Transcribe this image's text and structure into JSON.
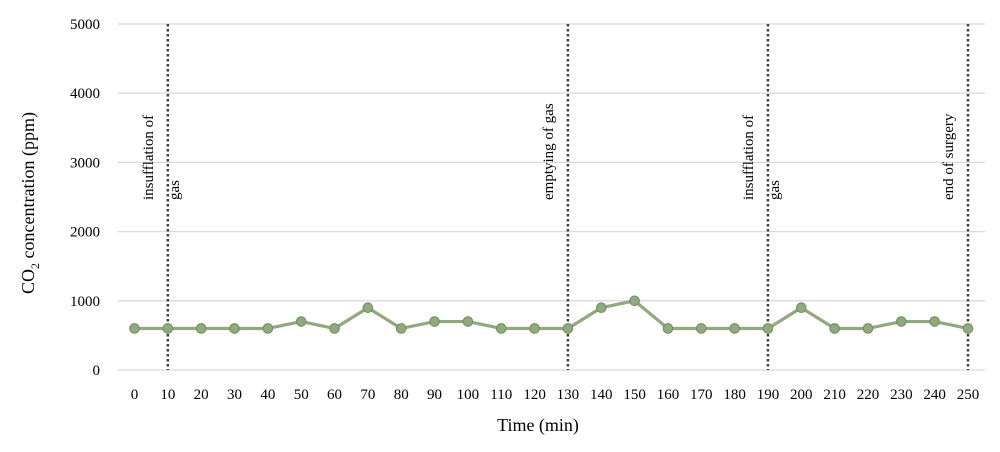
{
  "chart_data": {
    "type": "line",
    "title": "",
    "xlabel": "Time (min)",
    "ylabel_parts": [
      "CO",
      "2",
      " concentration (ppm)"
    ],
    "ylim": [
      0,
      5000
    ],
    "yticks": [
      0,
      1000,
      2000,
      3000,
      4000,
      5000
    ],
    "grid": "horizontal",
    "legend": "none",
    "x": [
      0,
      10,
      20,
      30,
      40,
      50,
      60,
      70,
      80,
      90,
      100,
      110,
      120,
      130,
      140,
      150,
      160,
      170,
      180,
      190,
      200,
      210,
      220,
      230,
      240,
      250
    ],
    "series": [
      {
        "values": [
          600,
          600,
          600,
          600,
          600,
          700,
          600,
          900,
          600,
          700,
          700,
          600,
          600,
          600,
          900,
          1000,
          600,
          600,
          600,
          600,
          900,
          600,
          600,
          700,
          700,
          600
        ]
      }
    ],
    "events": [
      {
        "x": 10,
        "lines": [
          "insufflation of",
          "gas"
        ]
      },
      {
        "x": 130,
        "lines": [
          "emptying of gas"
        ]
      },
      {
        "x": 190,
        "lines": [
          "insufflation of",
          "gas"
        ]
      },
      {
        "x": 250,
        "lines": [
          "end of surgery"
        ]
      }
    ],
    "colors": {
      "line": "#8faa7c",
      "marker_fill": "#8faa7c",
      "marker_stroke": "#6f8f5e",
      "grid": "#d9d9d9",
      "event_line": "#404040"
    }
  }
}
